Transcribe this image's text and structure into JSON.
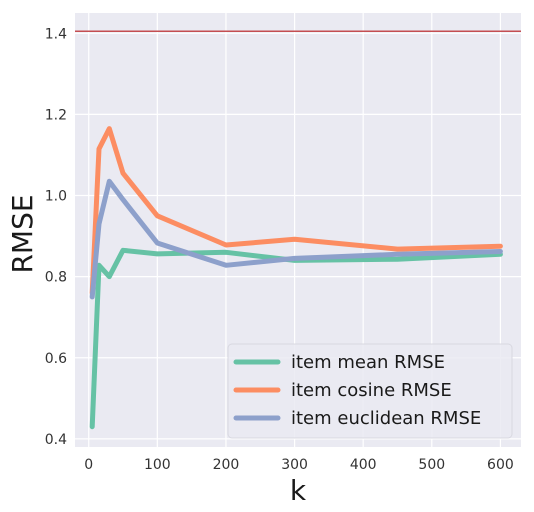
{
  "chart_data": {
    "type": "line",
    "xlabel": "k",
    "ylabel": "RMSE",
    "xlim": [
      -20,
      630
    ],
    "ylim": [
      0.38,
      1.45
    ],
    "x_ticks": [
      0,
      100,
      200,
      300,
      400,
      500,
      600
    ],
    "y_ticks": [
      0.4,
      0.6,
      0.8,
      1.0,
      1.2,
      1.4
    ],
    "y_tick_labels": [
      "0.4",
      "0.6",
      "0.8",
      "1.0",
      "1.2",
      "1.4"
    ],
    "grid": true,
    "background": "#eaeaf2",
    "legend_position": "lower-right",
    "reference_line": {
      "y": 1.405,
      "color": "#c44e52"
    },
    "series": [
      {
        "name": "item mean RMSE",
        "color": "#66c2a5",
        "x": [
          5,
          15,
          30,
          50,
          100,
          200,
          300,
          450,
          600
        ],
        "y": [
          0.43,
          0.828,
          0.8,
          0.865,
          0.856,
          0.86,
          0.84,
          0.843,
          0.855
        ]
      },
      {
        "name": "item cosine RMSE",
        "color": "#fc8d62",
        "x": [
          5,
          15,
          30,
          50,
          100,
          200,
          300,
          450,
          600
        ],
        "y": [
          0.76,
          1.115,
          1.165,
          1.055,
          0.95,
          0.878,
          0.892,
          0.868,
          0.875
        ]
      },
      {
        "name": "item euclidean RMSE",
        "color": "#8da0cb",
        "x": [
          5,
          15,
          30,
          50,
          100,
          200,
          300,
          450,
          600
        ],
        "y": [
          0.75,
          0.93,
          1.035,
          0.99,
          0.883,
          0.828,
          0.845,
          0.855,
          0.862
        ]
      }
    ]
  }
}
